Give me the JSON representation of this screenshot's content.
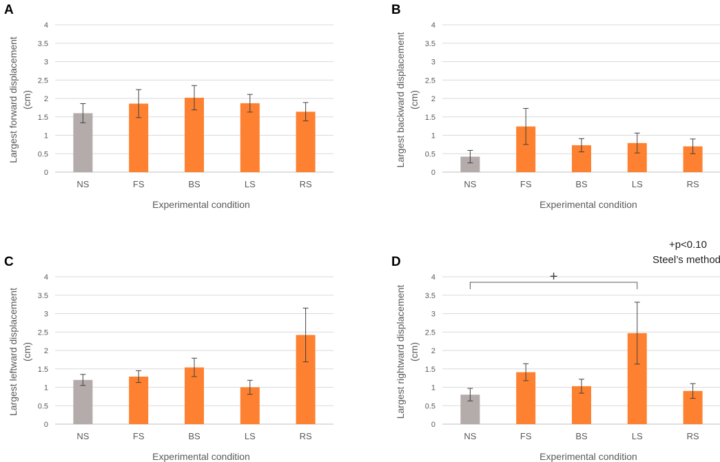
{
  "figure": {
    "colors": {
      "control": "#B4ACAB",
      "treatment": "#FD8130",
      "grid": "#D9D9D9",
      "text": "#595959",
      "error": "#404040"
    }
  },
  "chart_data": [
    {
      "panel": "A",
      "type": "bar",
      "title": "",
      "xlabel": "Experimental condition",
      "ylabel": "Largest forward displacement",
      "ylabel_unit": "(cm)",
      "ylim": [
        0,
        4
      ],
      "yticks": [
        "0",
        "0.5",
        "1",
        "1.5",
        "2",
        "2.5",
        "3",
        "3.5",
        "4"
      ],
      "categories": [
        "NS",
        "FS",
        "BS",
        "LS",
        "RS"
      ],
      "values": [
        1.6,
        1.86,
        2.02,
        1.87,
        1.64
      ],
      "errors": [
        0.26,
        0.38,
        0.33,
        0.24,
        0.25
      ],
      "grid": true
    },
    {
      "panel": "B",
      "type": "bar",
      "title": "",
      "xlabel": "Experimental condition",
      "ylabel": "Largest backward displacement",
      "ylabel_unit": "(cm)",
      "ylim": [
        0,
        4
      ],
      "yticks": [
        "0",
        "0.5",
        "1",
        "1.5",
        "2",
        "2.5",
        "3",
        "3.5",
        "4"
      ],
      "categories": [
        "NS",
        "FS",
        "BS",
        "LS",
        "RS"
      ],
      "values": [
        0.42,
        1.24,
        0.73,
        0.79,
        0.7
      ],
      "errors": [
        0.17,
        0.49,
        0.18,
        0.27,
        0.2
      ],
      "grid": true
    },
    {
      "panel": "C",
      "type": "bar",
      "title": "",
      "xlabel": "Experimental condition",
      "ylabel": "Largest leftward displacement",
      "ylabel_unit": "(cm)",
      "ylim": [
        0,
        4
      ],
      "yticks": [
        "0",
        "0.5",
        "1",
        "1.5",
        "2",
        "2.5",
        "3",
        "3.5",
        "4"
      ],
      "categories": [
        "NS",
        "FS",
        "BS",
        "LS",
        "RS"
      ],
      "values": [
        1.2,
        1.29,
        1.54,
        1.0,
        2.42
      ],
      "errors": [
        0.15,
        0.16,
        0.25,
        0.19,
        0.73
      ],
      "grid": true
    },
    {
      "panel": "D",
      "type": "bar",
      "title": "",
      "xlabel": "Experimental condition",
      "ylabel": "Largest rightward displacement",
      "ylabel_unit": "(cm)",
      "ylim": [
        0,
        4
      ],
      "yticks": [
        "0",
        "0.5",
        "1",
        "1.5",
        "2",
        "2.5",
        "3",
        "3.5",
        "4"
      ],
      "categories": [
        "NS",
        "FS",
        "BS",
        "LS",
        "RS"
      ],
      "values": [
        0.8,
        1.41,
        1.03,
        2.47,
        0.9
      ],
      "errors": [
        0.17,
        0.23,
        0.19,
        0.84,
        0.2
      ],
      "grid": true,
      "significance": {
        "from": "NS",
        "to": "LS",
        "symbol": "+",
        "level": 3.85
      },
      "annotation": [
        "+p<0.10",
        "Steel’s method"
      ]
    }
  ]
}
